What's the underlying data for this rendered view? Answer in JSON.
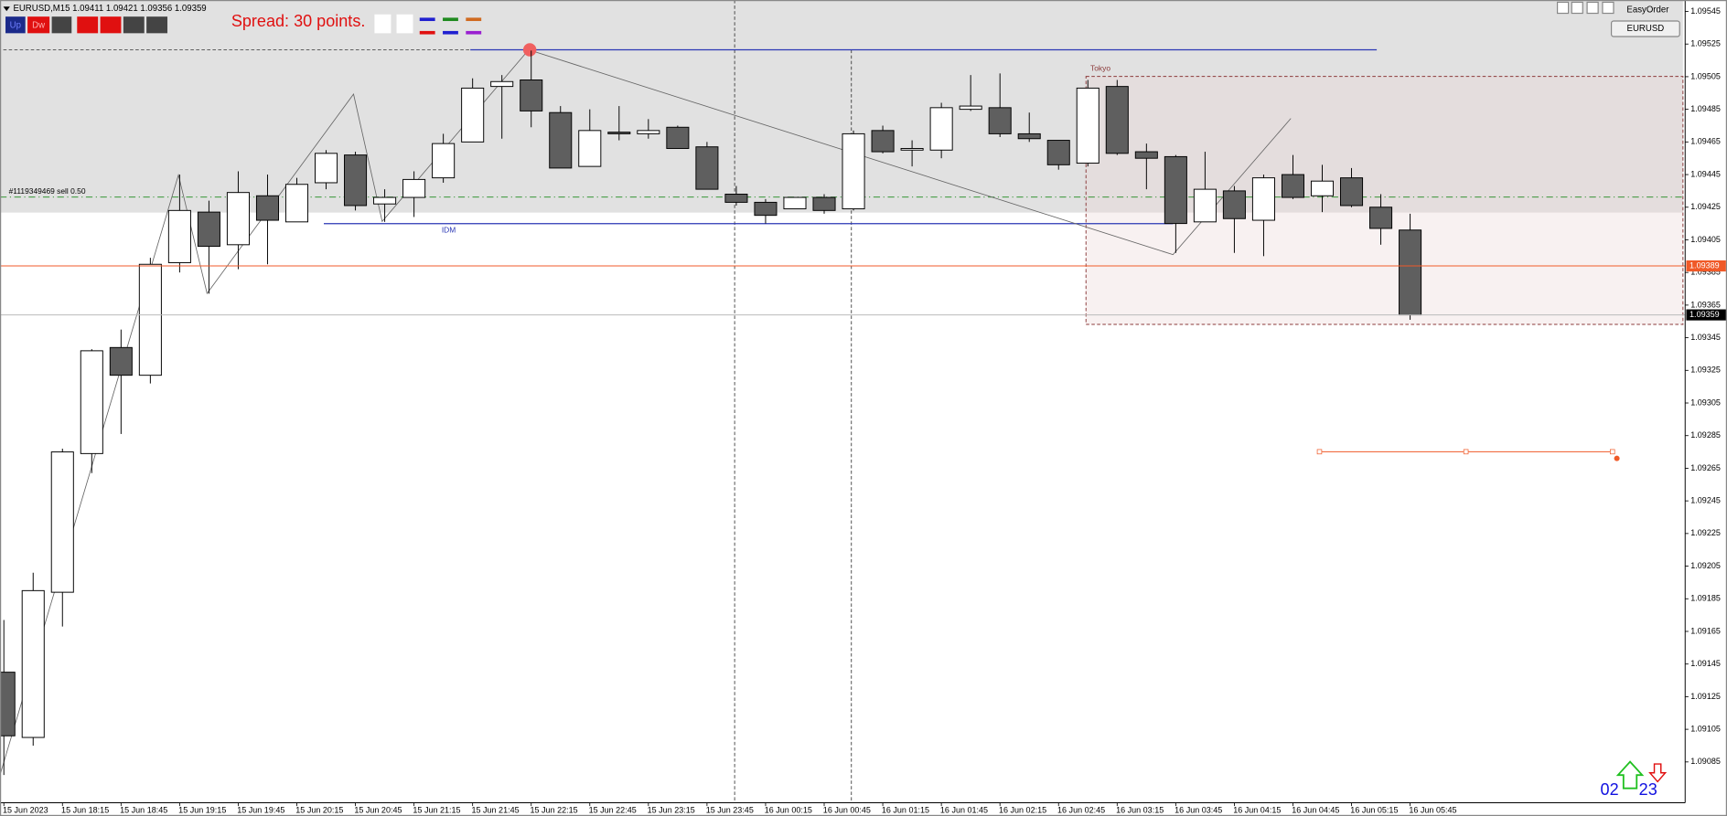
{
  "window": {
    "header": "EURUSD,M15  1.09411 1.09421 1.09356 1.09359"
  },
  "toolbar": {
    "up": "Up",
    "down": "Dw"
  },
  "spread": "Spread: 30 points.",
  "order_label": "#1119349469 sell 0.50",
  "idm_label": "IDM",
  "session_label": "Tokyo",
  "easyorder": "EasyOrder",
  "symbol_button": "EURUSD",
  "counters": [
    "02",
    "23"
  ],
  "chart_data": {
    "type": "candlestick",
    "categories": [
      "15 Jun 2023",
      null,
      "15 Jun 18:15",
      null,
      "15 Jun 18:45",
      null,
      "15 Jun 19:15",
      null,
      "15 Jun 19:45",
      null,
      "15 Jun 20:15",
      null,
      "15 Jun 20:45",
      null,
      "15 Jun 21:15",
      null,
      "15 Jun 21:45",
      null,
      "15 Jun 22:15",
      null,
      "15 Jun 22:45",
      null,
      "15 Jun 23:15",
      null,
      "15 Jun 23:45",
      null,
      "16 Jun 00:15",
      null,
      "16 Jun 00:45",
      null,
      "16 Jun 01:15",
      null,
      "16 Jun 01:45",
      null,
      "16 Jun 02:15",
      null,
      "16 Jun 02:45",
      null,
      "16 Jun 03:15",
      null,
      "16 Jun 03:45",
      null,
      "16 Jun 04:15",
      null,
      "16 Jun 04:45",
      null,
      "16 Jun 05:15",
      null,
      "16 Jun 05:45"
    ],
    "open": [
      1.0914,
      1.091,
      1.09189,
      1.09274,
      1.09339,
      1.09322,
      1.09391,
      1.09422,
      1.09402,
      1.09432,
      1.09416,
      1.0944,
      1.09457,
      1.09427,
      1.09431,
      1.09443,
      1.09465,
      1.09499,
      1.09503,
      1.09483,
      1.0945,
      1.09471,
      1.0947,
      1.09474,
      1.09462,
      1.09433,
      1.09428,
      1.09424,
      1.09431,
      1.09424,
      1.09472,
      1.0946,
      1.0946,
      1.09485,
      1.09486,
      1.0947,
      1.09466,
      1.09452,
      1.09499,
      1.09459,
      1.09456,
      1.09416,
      1.09435,
      1.09417,
      1.09445,
      1.09432,
      1.09443,
      1.09425,
      1.09411
    ],
    "high": [
      1.09172,
      1.09201,
      1.09277,
      1.09338,
      1.0935,
      1.09394,
      1.09445,
      1.09429,
      1.09447,
      1.09445,
      1.09443,
      1.0946,
      1.09459,
      1.09436,
      1.09447,
      1.0947,
      1.09504,
      1.09506,
      1.09521,
      1.09487,
      1.09485,
      1.09487,
      1.09479,
      1.09475,
      1.09465,
      1.09438,
      1.0943,
      1.09431,
      1.09433,
      1.09472,
      1.09475,
      1.09466,
      1.09489,
      1.09506,
      1.09507,
      1.09483,
      1.09466,
      1.09503,
      1.09503,
      1.09464,
      1.09457,
      1.09459,
      1.09438,
      1.09445,
      1.09457,
      1.09451,
      1.09449,
      1.09433,
      1.09421
    ],
    "low": [
      1.09077,
      1.09095,
      1.09168,
      1.09262,
      1.09286,
      1.09317,
      1.09385,
      1.09372,
      1.09387,
      1.0939,
      1.09416,
      1.09436,
      1.09423,
      1.09416,
      1.09419,
      1.0944,
      1.09465,
      1.09467,
      1.09474,
      1.09449,
      1.0945,
      1.09466,
      1.09467,
      1.09461,
      1.09436,
      1.09426,
      1.09415,
      1.09424,
      1.09421,
      1.09423,
      1.09458,
      1.0945,
      1.09455,
      1.09484,
      1.09468,
      1.09465,
      1.09448,
      1.0945,
      1.09457,
      1.09436,
      1.09397,
      1.09416,
      1.09397,
      1.09395,
      1.0943,
      1.09422,
      1.09425,
      1.09402,
      1.09356
    ],
    "close": [
      1.09101,
      1.0919,
      1.09275,
      1.09337,
      1.09322,
      1.0939,
      1.09423,
      1.09401,
      1.09434,
      1.09417,
      1.09439,
      1.09458,
      1.09426,
      1.09431,
      1.09442,
      1.09464,
      1.09498,
      1.09502,
      1.09484,
      1.09449,
      1.09472,
      1.0947,
      1.09472,
      1.09461,
      1.09436,
      1.09428,
      1.0942,
      1.09431,
      1.09423,
      1.0947,
      1.09459,
      1.09461,
      1.09486,
      1.09487,
      1.0947,
      1.09467,
      1.09451,
      1.09498,
      1.09458,
      1.09455,
      1.09415,
      1.09436,
      1.09418,
      1.09443,
      1.09431,
      1.09441,
      1.09426,
      1.09412,
      1.09359
    ],
    "up_color": "#ffffff",
    "down_color": "#5f5f5f",
    "ylim": [
      1.0906,
      1.09552
    ],
    "yticks": [
      1.09545,
      1.09525,
      1.09505,
      1.09485,
      1.09465,
      1.09445,
      1.09425,
      1.09405,
      1.09385,
      1.09365,
      1.09345,
      1.09325,
      1.09305,
      1.09285,
      1.09265,
      1.09245,
      1.09225,
      1.09205,
      1.09185,
      1.09165,
      1.09145,
      1.09125,
      1.09105,
      1.09085
    ],
    "price_lines": [
      {
        "value": 1.09389,
        "color": "#f05a28"
      },
      {
        "value": 1.09359,
        "color": "#000000"
      }
    ]
  }
}
